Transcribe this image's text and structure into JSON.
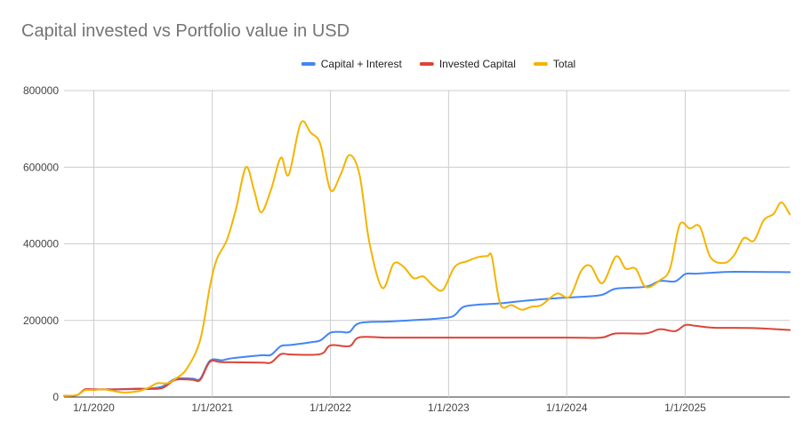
{
  "chart_data": {
    "type": "line",
    "title": "Capital invested vs Portfolio value in USD",
    "xlabel": "",
    "ylabel": "",
    "ylim": [
      0,
      800000
    ],
    "xlim": [
      "2019-10-01",
      "2025-11-20"
    ],
    "y_ticks": [
      "0",
      "200000",
      "400000",
      "600000",
      "800000"
    ],
    "x_ticks": [
      "1/1/2020",
      "1/1/2021",
      "1/1/2022",
      "1/1/2023",
      "1/1/2024",
      "1/1/2025"
    ],
    "grid": true,
    "legend_position": "top",
    "series": [
      {
        "name": "Capital + Interest",
        "color": "#4285f4",
        "points": [
          [
            "2019-10-01",
            3000
          ],
          [
            "2019-11-10",
            5000
          ],
          [
            "2019-12-05",
            20000
          ],
          [
            "2020-01-01",
            20000
          ],
          [
            "2020-03-01",
            20000
          ],
          [
            "2020-05-15",
            22000
          ],
          [
            "2020-06-20",
            22000
          ],
          [
            "2020-08-01",
            28000
          ],
          [
            "2020-09-10",
            48000
          ],
          [
            "2020-11-01",
            48000
          ],
          [
            "2020-11-25",
            48000
          ],
          [
            "2020-12-25",
            95000
          ],
          [
            "2021-02-01",
            96000
          ],
          [
            "2021-03-01",
            101000
          ],
          [
            "2021-06-01",
            109000
          ],
          [
            "2021-07-01",
            110000
          ],
          [
            "2021-08-01",
            133000
          ],
          [
            "2021-09-01",
            136000
          ],
          [
            "2021-11-01",
            143000
          ],
          [
            "2021-12-01",
            148000
          ],
          [
            "2022-01-01",
            168000
          ],
          [
            "2022-02-01",
            170000
          ],
          [
            "2022-03-01",
            170000
          ],
          [
            "2022-04-01",
            193000
          ],
          [
            "2022-07-01",
            197000
          ],
          [
            "2022-09-01",
            200000
          ],
          [
            "2022-12-01",
            205000
          ],
          [
            "2023-01-15",
            211000
          ],
          [
            "2023-02-15",
            235000
          ],
          [
            "2023-04-01",
            241000
          ],
          [
            "2023-06-01",
            244000
          ],
          [
            "2023-09-01",
            252000
          ],
          [
            "2023-12-01",
            258000
          ],
          [
            "2024-01-15",
            260000
          ],
          [
            "2024-04-15",
            266000
          ],
          [
            "2024-06-01",
            283000
          ],
          [
            "2024-09-01",
            288000
          ],
          [
            "2024-10-15",
            303000
          ],
          [
            "2024-12-01",
            302000
          ],
          [
            "2025-01-01",
            321000
          ],
          [
            "2025-02-01",
            322000
          ],
          [
            "2025-03-15",
            324000
          ],
          [
            "2025-06-01",
            327000
          ],
          [
            "2025-11-20",
            326000
          ]
        ]
      },
      {
        "name": "Invested Capital",
        "color": "#db4437",
        "points": [
          [
            "2019-10-01",
            3000
          ],
          [
            "2019-11-10",
            5000
          ],
          [
            "2019-12-05",
            20000
          ],
          [
            "2020-01-01",
            20000
          ],
          [
            "2020-03-01",
            20000
          ],
          [
            "2020-05-15",
            21000
          ],
          [
            "2020-06-20",
            21000
          ],
          [
            "2020-08-01",
            24000
          ],
          [
            "2020-09-10",
            45000
          ],
          [
            "2020-11-01",
            45000
          ],
          [
            "2020-11-25",
            45000
          ],
          [
            "2020-12-25",
            92000
          ],
          [
            "2021-02-01",
            91000
          ],
          [
            "2021-06-01",
            90000
          ],
          [
            "2021-07-01",
            90000
          ],
          [
            "2021-08-01",
            112000
          ],
          [
            "2021-09-01",
            111000
          ],
          [
            "2021-12-01",
            112000
          ],
          [
            "2022-01-01",
            135000
          ],
          [
            "2022-03-01",
            133000
          ],
          [
            "2022-04-01",
            156000
          ],
          [
            "2022-07-01",
            155000
          ],
          [
            "2023-01-01",
            155000
          ],
          [
            "2024-01-01",
            155000
          ],
          [
            "2024-04-15",
            155000
          ],
          [
            "2024-06-01",
            166000
          ],
          [
            "2024-09-01",
            166000
          ],
          [
            "2024-10-15",
            177000
          ],
          [
            "2024-12-01",
            172000
          ],
          [
            "2025-01-01",
            188000
          ],
          [
            "2025-02-01",
            186000
          ],
          [
            "2025-04-01",
            181000
          ],
          [
            "2025-08-01",
            180000
          ],
          [
            "2025-11-20",
            175000
          ]
        ]
      },
      {
        "name": "Total",
        "color": "#f4b400",
        "points": [
          [
            "2019-10-01",
            3000
          ],
          [
            "2019-11-10",
            5000
          ],
          [
            "2019-12-05",
            18000
          ],
          [
            "2020-01-01",
            18000
          ],
          [
            "2020-02-01",
            20000
          ],
          [
            "2020-04-01",
            12000
          ],
          [
            "2020-05-15",
            15000
          ],
          [
            "2020-06-20",
            25000
          ],
          [
            "2020-07-15",
            36000
          ],
          [
            "2020-08-15",
            36000
          ],
          [
            "2020-09-10",
            48000
          ],
          [
            "2020-10-15",
            75000
          ],
          [
            "2020-11-25",
            150000
          ],
          [
            "2020-12-25",
            290000
          ],
          [
            "2021-01-15",
            360000
          ],
          [
            "2021-02-15",
            410000
          ],
          [
            "2021-03-15",
            490000
          ],
          [
            "2021-04-15",
            600000
          ],
          [
            "2021-05-10",
            540000
          ],
          [
            "2021-06-01",
            482000
          ],
          [
            "2021-07-01",
            540000
          ],
          [
            "2021-08-01",
            625000
          ],
          [
            "2021-08-25",
            580000
          ],
          [
            "2021-10-01",
            715000
          ],
          [
            "2021-11-01",
            690000
          ],
          [
            "2021-12-01",
            660000
          ],
          [
            "2022-01-01",
            540000
          ],
          [
            "2022-02-01",
            580000
          ],
          [
            "2022-03-01",
            632000
          ],
          [
            "2022-04-01",
            580000
          ],
          [
            "2022-05-01",
            405000
          ],
          [
            "2022-06-10",
            285000
          ],
          [
            "2022-07-15",
            348000
          ],
          [
            "2022-08-15",
            340000
          ],
          [
            "2022-09-15",
            310000
          ],
          [
            "2022-10-15",
            315000
          ],
          [
            "2022-11-15",
            290000
          ],
          [
            "2022-12-15",
            280000
          ],
          [
            "2023-01-20",
            340000
          ],
          [
            "2023-03-01",
            355000
          ],
          [
            "2023-04-01",
            365000
          ],
          [
            "2023-05-01",
            368000
          ],
          [
            "2023-05-15",
            365000
          ],
          [
            "2023-06-10",
            242000
          ],
          [
            "2023-07-15",
            240000
          ],
          [
            "2023-08-15",
            228000
          ],
          [
            "2023-09-15",
            236000
          ],
          [
            "2023-10-15",
            240000
          ],
          [
            "2023-12-01",
            270000
          ],
          [
            "2024-01-10",
            262000
          ],
          [
            "2024-02-15",
            330000
          ],
          [
            "2024-03-15",
            342000
          ],
          [
            "2024-04-20",
            297000
          ],
          [
            "2024-06-01",
            367000
          ],
          [
            "2024-07-01",
            335000
          ],
          [
            "2024-08-01",
            335000
          ],
          [
            "2024-09-01",
            287000
          ],
          [
            "2024-10-15",
            305000
          ],
          [
            "2024-11-15",
            335000
          ],
          [
            "2024-12-15",
            450000
          ],
          [
            "2025-01-15",
            440000
          ],
          [
            "2025-02-15",
            445000
          ],
          [
            "2025-03-20",
            365000
          ],
          [
            "2025-05-01",
            350000
          ],
          [
            "2025-06-01",
            370000
          ],
          [
            "2025-07-01",
            415000
          ],
          [
            "2025-08-01",
            408000
          ],
          [
            "2025-09-01",
            462000
          ],
          [
            "2025-10-01",
            478000
          ],
          [
            "2025-10-25",
            508000
          ],
          [
            "2025-11-20",
            477000
          ]
        ]
      }
    ]
  }
}
